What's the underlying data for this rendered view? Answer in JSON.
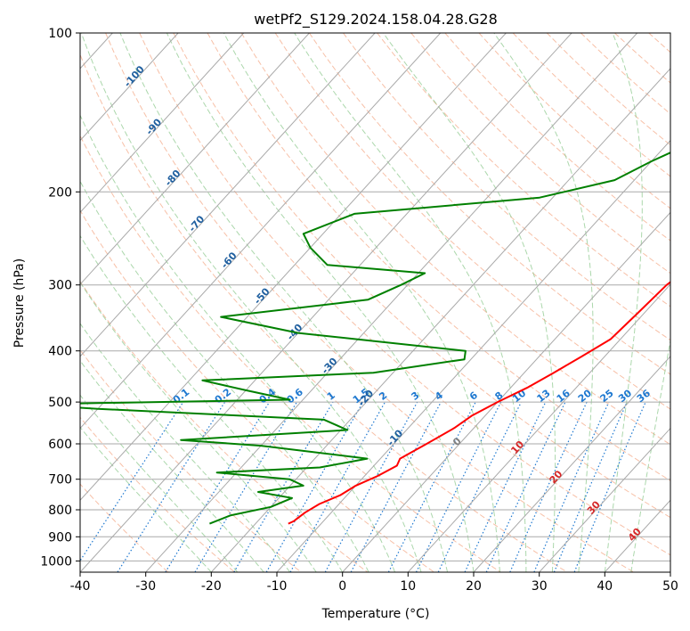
{
  "chart_data": {
    "type": "line",
    "title": "wetPf2_S129.2024.158.04.28.G28",
    "xlabel": "Temperature (°C)",
    "ylabel": "Pressure (hPa)",
    "xlim": [
      -40,
      50
    ],
    "ylim": [
      1050,
      100
    ],
    "y_scale": "log",
    "grid": true,
    "x_ticks": [
      "-40",
      "-30",
      "-20",
      "-10",
      "0",
      "10",
      "20",
      "30",
      "40",
      "50"
    ],
    "y_ticks": [
      "100",
      "200",
      "300",
      "400",
      "500",
      "600",
      "700",
      "800",
      "900",
      "1000"
    ],
    "series": [
      {
        "name": "",
        "color": "#ff0000",
        "points": [
          [
            100,
            1.5
          ],
          [
            105,
            2.0
          ],
          [
            115,
            1.8
          ],
          [
            125,
            1.0
          ],
          [
            140,
            1.5
          ],
          [
            160,
            3.0
          ],
          [
            180,
            4.5
          ],
          [
            200,
            7.0
          ],
          [
            230,
            10.0
          ],
          [
            260,
            12.5
          ],
          [
            270,
            12.0
          ],
          [
            280,
            10.5
          ],
          [
            300,
            9.5
          ],
          [
            340,
            9.0
          ],
          [
            380,
            8.5
          ],
          [
            410,
            6.5
          ],
          [
            440,
            4.5
          ],
          [
            470,
            2.5
          ],
          [
            500,
            0.0
          ],
          [
            530,
            -2.0
          ],
          [
            560,
            -3.0
          ],
          [
            600,
            -5.0
          ],
          [
            640,
            -7.0
          ],
          [
            660,
            -6.5
          ],
          [
            690,
            -8.0
          ],
          [
            720,
            -10.0
          ],
          [
            750,
            -11.0
          ],
          [
            780,
            -13.0
          ],
          [
            810,
            -14.0
          ],
          [
            840,
            -14.5
          ],
          [
            850,
            -15.0
          ]
        ]
      },
      {
        "name": "",
        "color": "#008000",
        "points": [
          [
            100,
            0.0
          ],
          [
            110,
            -3.5
          ],
          [
            120,
            -6.0
          ],
          [
            130,
            -6.0
          ],
          [
            140,
            -4.0
          ],
          [
            150,
            -3.5
          ],
          [
            160,
            -6.0
          ],
          [
            175,
            -10.0
          ],
          [
            190,
            -13.0
          ],
          [
            205,
            -22.0
          ],
          [
            220,
            -48.0
          ],
          [
            240,
            -53.0
          ],
          [
            255,
            -50.0
          ],
          [
            275,
            -45.0
          ],
          [
            285,
            -29.0
          ],
          [
            300,
            -31.0
          ],
          [
            320,
            -34.0
          ],
          [
            345,
            -54.0
          ],
          [
            370,
            -40.0
          ],
          [
            400,
            -12.0
          ],
          [
            415,
            -11.0
          ],
          [
            440,
            -23.0
          ],
          [
            455,
            -48.0
          ],
          [
            475,
            -40.0
          ],
          [
            495,
            -32.0
          ],
          [
            505,
            -72.0
          ],
          [
            515,
            -60.0
          ],
          [
            540,
            -24.0
          ],
          [
            565,
            -19.0
          ],
          [
            590,
            -43.0
          ],
          [
            605,
            -30.0
          ],
          [
            640,
            -12.0
          ],
          [
            665,
            -18.0
          ],
          [
            680,
            -33.0
          ],
          [
            690,
            -27.0
          ],
          [
            700,
            -21.0
          ],
          [
            720,
            -18.0
          ],
          [
            740,
            -24.0
          ],
          [
            760,
            -18.0
          ],
          [
            790,
            -20.0
          ],
          [
            820,
            -25.0
          ],
          [
            850,
            -27.0
          ]
        ]
      }
    ],
    "mixing_ratio_labels": [
      "0.1",
      "0.2",
      "0.4",
      "0.6",
      "1",
      "1.5",
      "2",
      "3",
      "4",
      "6",
      "8",
      "10",
      "13",
      "16",
      "20",
      "25",
      "30",
      "36"
    ],
    "dry_adiabat_labels": [
      "-100",
      "-90",
      "-80",
      "-70",
      "-60",
      "-50",
      "-40",
      "-30",
      "-20",
      "-10",
      "0",
      "10",
      "20",
      "30",
      "40"
    ],
    "colors": {
      "temperature": "#ff0000",
      "dewpoint": "#008000",
      "isotherm": "#a9a9a9",
      "dry_adiabat": "#f4a582",
      "moist_adiabat": "#8fc98f",
      "mixing_ratio": "#1e78d0",
      "label_blue": "#1f5f9f",
      "label_red": "#d62728"
    }
  }
}
